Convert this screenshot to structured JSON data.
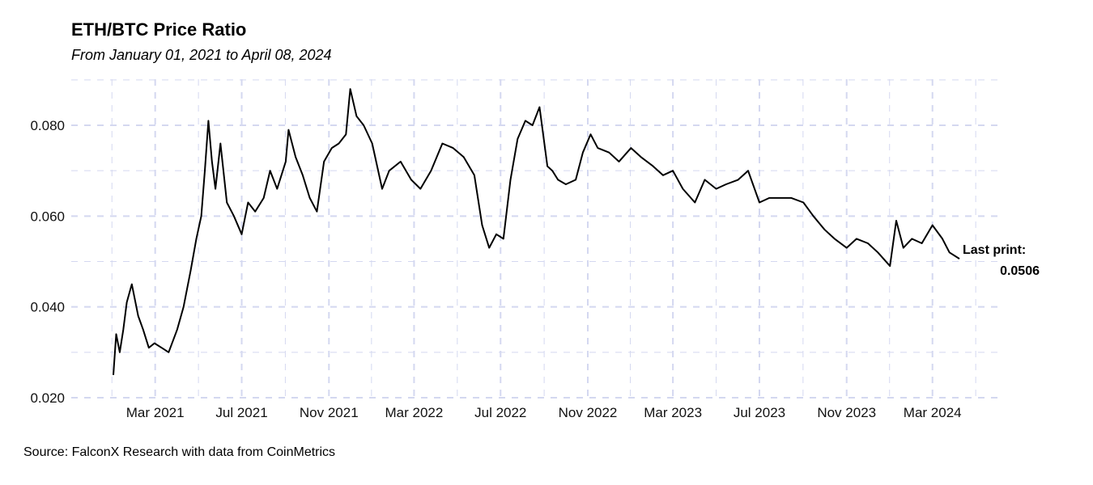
{
  "header": {
    "title": "ETH/BTC Price Ratio",
    "subtitle": "From January 01, 2021 to April 08, 2024"
  },
  "footer": {
    "caption": "Source: FalconX Research with data from CoinMetrics"
  },
  "chart_data": {
    "type": "line",
    "title": "ETH/BTC Price Ratio",
    "subtitle": "From January 01, 2021 to April 08, 2024",
    "xlabel": "",
    "ylabel": "",
    "x_range": [
      "2021-01-01",
      "2024-04-08"
    ],
    "ylim": [
      0.019,
      0.0905
    ],
    "y_ticks": [
      0.02,
      0.04,
      0.06,
      0.08
    ],
    "y_tick_labels": [
      "0.020",
      "0.040",
      "0.060",
      "0.080"
    ],
    "x_ticks": [
      "2021-03-01",
      "2021-07-01",
      "2021-11-01",
      "2022-03-01",
      "2022-07-01",
      "2022-11-01",
      "2023-03-01",
      "2023-07-01",
      "2023-11-01",
      "2024-03-01"
    ],
    "x_tick_labels": [
      "Mar 2021",
      "Jul 2021",
      "Nov 2021",
      "Mar 2022",
      "Jul 2022",
      "Nov 2022",
      "Mar 2023",
      "Jul 2023",
      "Nov 2023",
      "Mar 2024"
    ],
    "grid": true,
    "color": "#000000",
    "grid_color": "#d4d8f0",
    "series": [
      {
        "name": "ETH/BTC",
        "x": [
          "2021-01-01",
          "2021-01-05",
          "2021-01-10",
          "2021-01-15",
          "2021-01-20",
          "2021-01-27",
          "2021-02-05",
          "2021-02-12",
          "2021-02-20",
          "2021-02-28",
          "2021-03-10",
          "2021-03-20",
          "2021-04-01",
          "2021-04-10",
          "2021-04-20",
          "2021-04-28",
          "2021-05-05",
          "2021-05-10",
          "2021-05-15",
          "2021-05-20",
          "2021-05-25",
          "2021-06-01",
          "2021-06-10",
          "2021-06-20",
          "2021-07-01",
          "2021-07-10",
          "2021-07-20",
          "2021-08-01",
          "2021-08-10",
          "2021-08-20",
          "2021-09-01",
          "2021-09-05",
          "2021-09-15",
          "2021-09-25",
          "2021-10-05",
          "2021-10-15",
          "2021-10-25",
          "2021-11-05",
          "2021-11-15",
          "2021-11-25",
          "2021-12-01",
          "2021-12-10",
          "2021-12-20",
          "2022-01-01",
          "2022-01-15",
          "2022-01-25",
          "2022-02-10",
          "2022-02-25",
          "2022-03-10",
          "2022-03-25",
          "2022-04-10",
          "2022-04-25",
          "2022-05-10",
          "2022-05-25",
          "2022-06-05",
          "2022-06-15",
          "2022-06-25",
          "2022-07-05",
          "2022-07-15",
          "2022-07-25",
          "2022-08-05",
          "2022-08-15",
          "2022-08-25",
          "2022-09-05",
          "2022-09-12",
          "2022-09-20",
          "2022-10-01",
          "2022-10-15",
          "2022-10-25",
          "2022-11-05",
          "2022-11-15",
          "2022-12-01",
          "2022-12-15",
          "2023-01-01",
          "2023-01-15",
          "2023-02-01",
          "2023-02-15",
          "2023-03-01",
          "2023-03-15",
          "2023-04-01",
          "2023-04-15",
          "2023-05-01",
          "2023-05-15",
          "2023-06-01",
          "2023-06-15",
          "2023-07-01",
          "2023-07-15",
          "2023-08-01",
          "2023-08-15",
          "2023-09-01",
          "2023-09-15",
          "2023-10-01",
          "2023-10-15",
          "2023-11-01",
          "2023-11-15",
          "2023-12-01",
          "2023-12-15",
          "2024-01-01",
          "2024-01-10",
          "2024-01-20",
          "2024-02-01",
          "2024-02-15",
          "2024-03-01",
          "2024-03-15",
          "2024-03-25",
          "2024-04-08"
        ],
        "values": [
          0.025,
          0.034,
          0.03,
          0.035,
          0.041,
          0.045,
          0.038,
          0.035,
          0.031,
          0.032,
          0.031,
          0.03,
          0.035,
          0.04,
          0.048,
          0.055,
          0.06,
          0.07,
          0.081,
          0.072,
          0.066,
          0.076,
          0.063,
          0.06,
          0.056,
          0.063,
          0.061,
          0.064,
          0.07,
          0.066,
          0.072,
          0.079,
          0.073,
          0.069,
          0.064,
          0.061,
          0.072,
          0.075,
          0.076,
          0.078,
          0.088,
          0.082,
          0.08,
          0.076,
          0.066,
          0.07,
          0.072,
          0.068,
          0.066,
          0.07,
          0.076,
          0.075,
          0.073,
          0.069,
          0.058,
          0.053,
          0.056,
          0.055,
          0.068,
          0.077,
          0.081,
          0.08,
          0.084,
          0.071,
          0.07,
          0.068,
          0.067,
          0.068,
          0.074,
          0.078,
          0.075,
          0.074,
          0.072,
          0.075,
          0.073,
          0.071,
          0.069,
          0.07,
          0.066,
          0.063,
          0.068,
          0.066,
          0.067,
          0.068,
          0.07,
          0.063,
          0.064,
          0.064,
          0.064,
          0.063,
          0.06,
          0.057,
          0.055,
          0.053,
          0.055,
          0.054,
          0.052,
          0.049,
          0.059,
          0.053,
          0.055,
          0.054,
          0.058,
          0.055,
          0.052,
          0.0506
        ]
      }
    ],
    "annotation": {
      "label": "Last print:",
      "value": "0.0506"
    }
  }
}
